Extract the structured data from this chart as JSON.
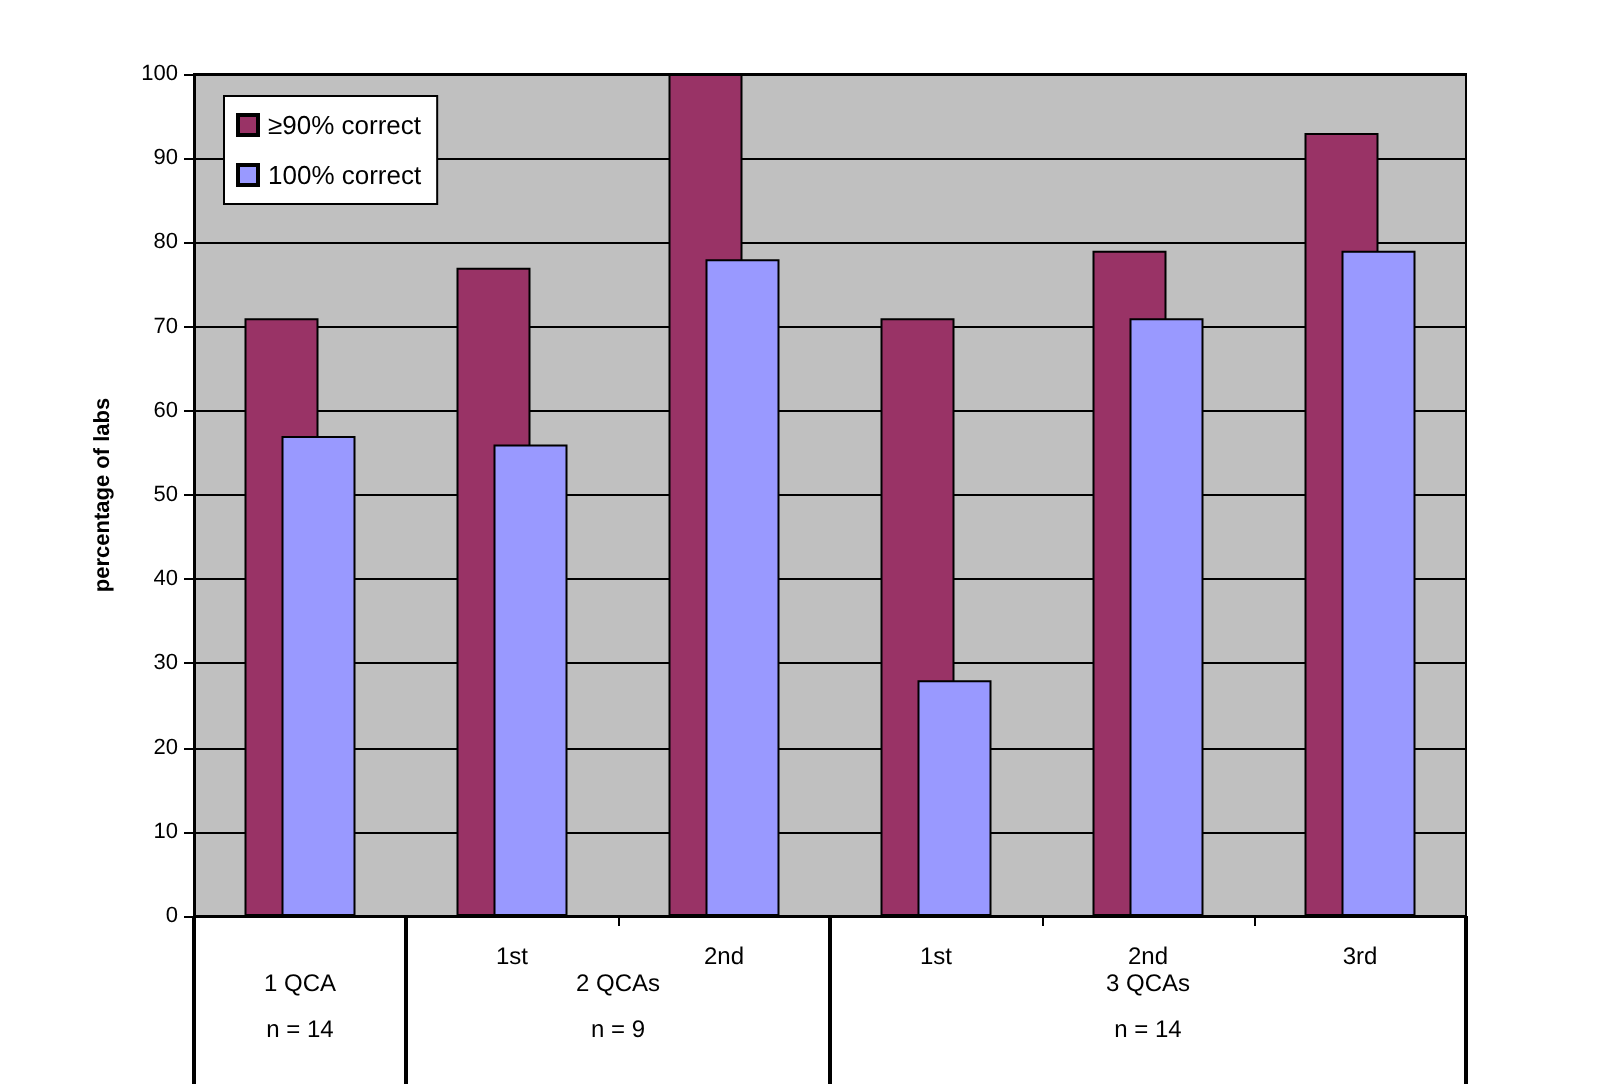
{
  "chart_data": {
    "type": "bar",
    "ylabel": "percentage of labs",
    "categories": [
      null,
      "1st",
      "2nd",
      "1st",
      "2nd",
      "3rd"
    ],
    "series": [
      {
        "name": "≥90% correct",
        "color": "#993366",
        "values": [
          71,
          77,
          100,
          71,
          79,
          93
        ]
      },
      {
        "name": "100% correct",
        "color": "#9999ff",
        "values": [
          57,
          56,
          78,
          28,
          71,
          79
        ]
      }
    ],
    "ylim": [
      0,
      100
    ],
    "yticks": [
      0,
      10,
      20,
      30,
      40,
      50,
      60,
      70,
      80,
      90,
      100
    ],
    "grid": "y",
    "legend": "top left",
    "annotations": [
      "1 QCA\nn = 14",
      "2 QCAs\nn = 9",
      "3 QCAs\nn = 14"
    ]
  }
}
